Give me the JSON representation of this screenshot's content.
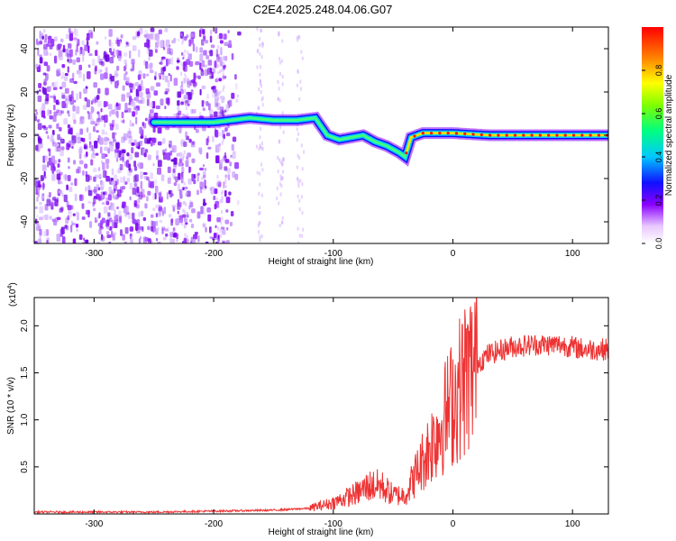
{
  "title": "C2E4.2025.248.04.06.G07",
  "chart_data": [
    {
      "type": "heatmap",
      "xlabel": "Height of straight line (km)",
      "ylabel": "Frequency (Hz)",
      "xlim": [
        -350,
        130
      ],
      "ylim": [
        -50,
        50
      ],
      "xticks": [
        -300,
        -200,
        -100,
        0,
        100
      ],
      "yticks": [
        -40,
        -20,
        0,
        20,
        40
      ],
      "colorbar": {
        "label": "Normalized spectral amplitude",
        "range": [
          0.0,
          1.0
        ],
        "ticks": [
          0.0,
          0.2,
          0.4,
          0.6,
          0.8
        ]
      },
      "signal_track": {
        "x": [
          -250,
          -230,
          -200,
          -185,
          -170,
          -150,
          -130,
          -115,
          -105,
          -95,
          -85,
          -75,
          -65,
          -55,
          -45,
          -40,
          -35,
          -25,
          -15,
          0,
          30,
          60,
          90,
          130
        ],
        "freq": [
          6,
          6,
          6,
          7,
          8,
          7,
          7,
          8,
          0,
          -2,
          -1,
          0,
          -3,
          -5,
          -8,
          -10,
          -1,
          1,
          1,
          1,
          0,
          0,
          0,
          0
        ]
      }
    },
    {
      "type": "line",
      "xlabel": "Height of straight line (km)",
      "ylabel": "SNR (10 * v/v)",
      "yscale_label": "(x10^4)",
      "xlim": [
        -350,
        130
      ],
      "ylim": [
        0,
        2.3
      ],
      "xticks": [
        -300,
        -200,
        -100,
        0,
        100
      ],
      "yticks": [
        0.5,
        1.0,
        1.5,
        2.0
      ],
      "series": [
        {
          "name": "SNR",
          "color": "#ee3333",
          "x": [
            -350,
            -300,
            -250,
            -200,
            -150,
            -120,
            -100,
            -90,
            -80,
            -70,
            -60,
            -50,
            -40,
            -30,
            -20,
            -10,
            0,
            10,
            20,
            30,
            50,
            70,
            90,
            110,
            130
          ],
          "y": [
            0.02,
            0.02,
            0.02,
            0.03,
            0.04,
            0.06,
            0.12,
            0.17,
            0.22,
            0.3,
            0.3,
            0.2,
            0.2,
            0.45,
            0.7,
            0.95,
            1.2,
            1.45,
            1.6,
            1.7,
            1.78,
            1.8,
            1.8,
            1.75,
            1.75
          ]
        }
      ]
    }
  ]
}
